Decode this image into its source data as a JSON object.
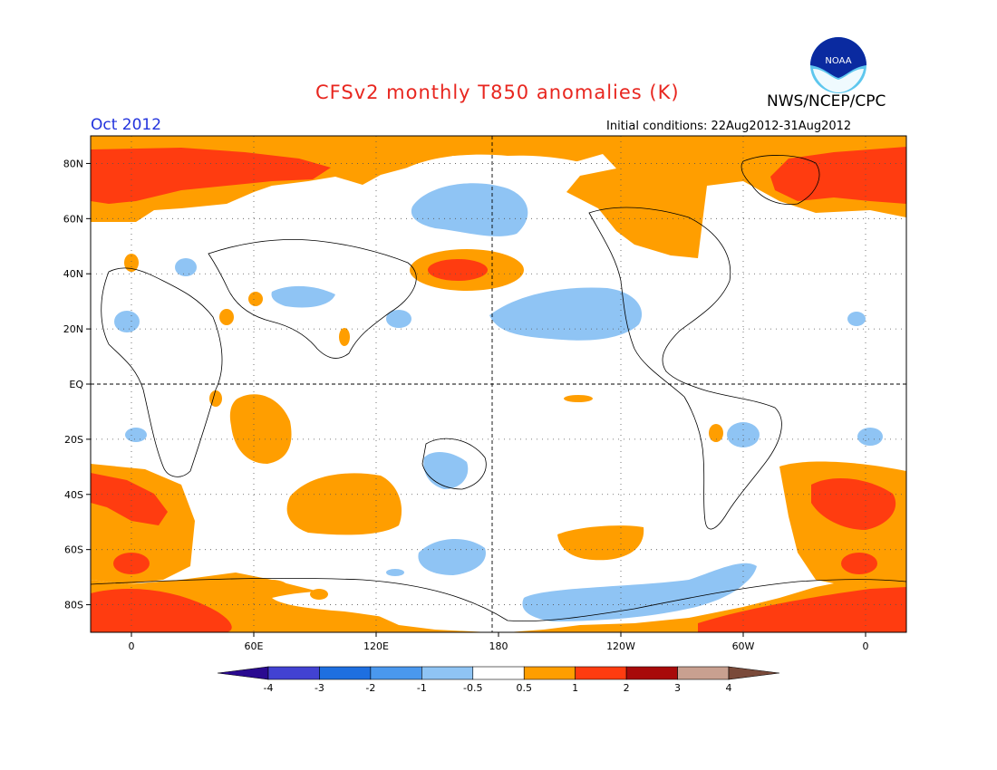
{
  "header": {
    "title": "CFSv2 monthly T850 anomalies (K)",
    "agency": "NWS/NCEP/CPC",
    "month": "Oct 2012",
    "initial_conditions": "Initial conditions: 22Aug2012-31Aug2012",
    "logo_text": "NOAA"
  },
  "map": {
    "lat_ticks": [
      "80N",
      "60N",
      "40N",
      "20N",
      "EQ",
      "20S",
      "40S",
      "60S",
      "80S"
    ],
    "lat_values": [
      80,
      60,
      40,
      20,
      0,
      -20,
      -40,
      -60,
      -80
    ],
    "lon_ticks": [
      "0",
      "60E",
      "120E",
      "180",
      "120W",
      "60W",
      "0"
    ],
    "lon_values": [
      0,
      60,
      120,
      180,
      240,
      300,
      360
    ],
    "lon_range": [
      -20,
      380
    ],
    "lat_range": [
      -90,
      90
    ]
  },
  "colorbar": {
    "labels": [
      "-4",
      "-3",
      "-2",
      "-1",
      "-0.5",
      "0.5",
      "1",
      "2",
      "3",
      "4"
    ],
    "colors": [
      "#3a10a8",
      "#4242d2",
      "#1e6fe0",
      "#4a98ee",
      "#8fc4f4",
      "#ffffff",
      "#ff9e00",
      "#ff3c10",
      "#a80a0a",
      "#c8a090",
      "#7a4a3a"
    ],
    "low_arrow_color": "#2a0a90",
    "high_arrow_color": "#7a4a3a"
  },
  "colors": {
    "orange": "#ff9e00",
    "red": "#ff3c10",
    "light_blue": "#8fc4f4",
    "blue": "#4a98ee",
    "title_red": "#e8261f",
    "month_blue": "#2233dd"
  }
}
